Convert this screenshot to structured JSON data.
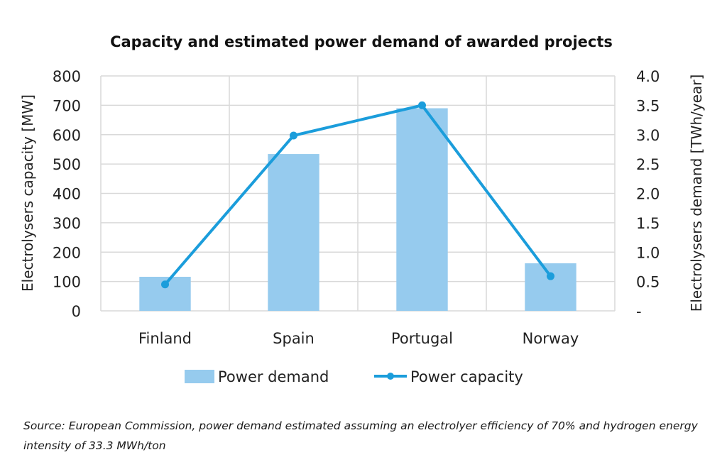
{
  "chart_data": {
    "type": "bar",
    "title": "Capacity and estimated power demand of awarded projects",
    "categories": [
      "Finland",
      "Spain",
      "Portugal",
      "Norway"
    ],
    "series": [
      {
        "name": "Power demand",
        "type": "bar",
        "axis": "right",
        "unit": "TWh/year",
        "color": "#96cbee",
        "values": [
          0.58,
          2.67,
          3.45,
          0.81
        ]
      },
      {
        "name": "Power capacity",
        "type": "line",
        "axis": "left",
        "unit": "MW",
        "color": "#1b9ddb",
        "values": [
          90,
          597,
          700,
          118
        ]
      }
    ],
    "ylabel": "Electrolysers capacity [MW]",
    "y2label": "Electrolysers demand [TWh/year]",
    "ylim": [
      0,
      800
    ],
    "y2lim": [
      0,
      4.0
    ],
    "yticks": [
      "0",
      "100",
      "200",
      "300",
      "400",
      "500",
      "600",
      "700",
      "800"
    ],
    "y2ticks": [
      "-",
      "0.5",
      "1.0",
      "1.5",
      "2.0",
      "2.5",
      "3.0",
      "3.5",
      "4.0"
    ],
    "grid": true,
    "legend_position": "bottom"
  },
  "footer": {
    "source_note": "Source: European Commission, power demand estimated assuming an electrolyer efficiency of 70% and hydrogen energy intensity of 33.3 MWh/ton"
  }
}
